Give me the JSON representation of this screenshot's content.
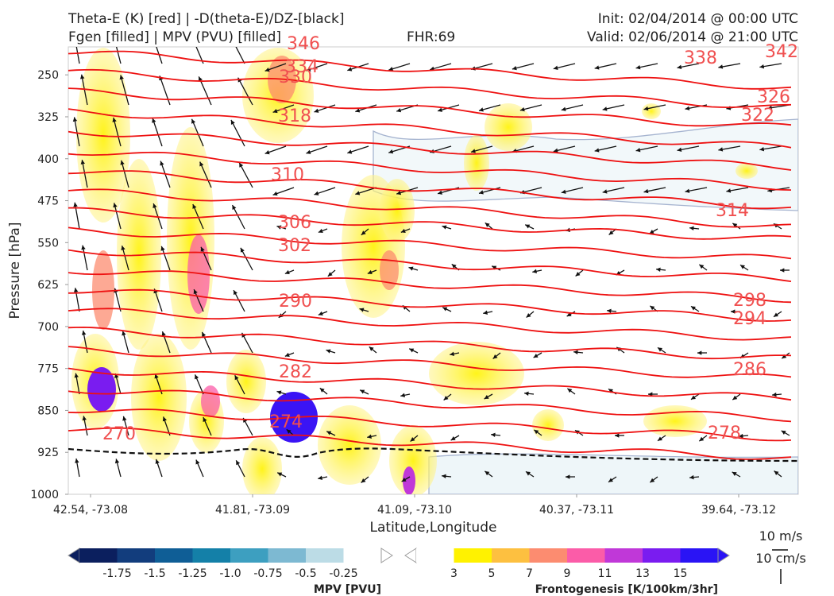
{
  "header": {
    "title_left_1": "Theta-E (K) [red] | -D(theta-E)/DZ-[black]",
    "title_left_2": "Fgen [filled] | MPV (PVU) [filled]",
    "fhr": "FHR:69",
    "init": "Init: 02/04/2014 @ 00:00 UTC",
    "valid": "Valid: 02/06/2014 @ 21:00 UTC"
  },
  "chart_data": {
    "type": "cross-section",
    "xlabel": "Latitude,Longitude",
    "ylabel": "Pressure [hPa]",
    "ylim": [
      1000,
      200
    ],
    "x_ticks": [
      "42.54, -73.08",
      "41.81, -73.09",
      "41.09, -73.10",
      "40.37, -73.11",
      "39.64, -73.12"
    ],
    "y_ticks": [
      250,
      325,
      400,
      475,
      550,
      625,
      700,
      775,
      850,
      925,
      1000
    ],
    "theta_e_contour_labels": [
      342,
      338,
      334,
      330,
      326,
      322,
      318,
      314,
      310,
      306,
      302,
      298,
      294,
      290,
      286,
      282,
      278,
      274,
      270,
      346
    ],
    "theta_e_color": "#ee1111",
    "mpv_colorbar": {
      "title": "MPV [PVU]",
      "ticks": [
        "-1.75",
        "-1.5",
        "-1.25",
        "-1.0",
        "-0.75",
        "-0.5",
        "-0.25"
      ],
      "colors": [
        "#0b1f5e",
        "#123d7d",
        "#0f5e96",
        "#1480a8",
        "#3d9fc0",
        "#7db9d2",
        "#bcdce6",
        "#ffffff"
      ]
    },
    "fgen_colorbar": {
      "title": "Frontogenesis [K/100km/3hr]",
      "ticks": [
        "3",
        "5",
        "7",
        "9",
        "11",
        "13",
        "15"
      ],
      "colors": [
        "#ffffff",
        "#fff200",
        "#fdc040",
        "#fc8c70",
        "#fb5ca8",
        "#c038d8",
        "#7a1cf0",
        "#2a14f5"
      ]
    },
    "vector_reference": {
      "horizontal": "10 m/s",
      "vertical": "10 cm/s"
    }
  }
}
